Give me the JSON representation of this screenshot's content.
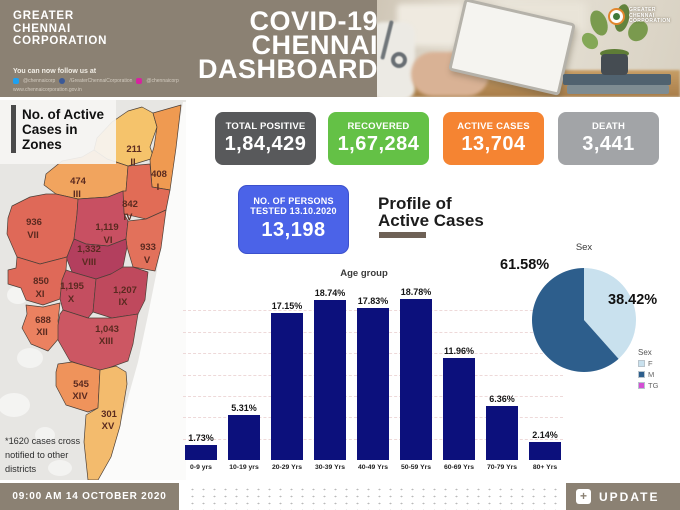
{
  "colors": {
    "header_bg": "#8b8173",
    "stat_total": "#58595b",
    "stat_recovered": "#64c146",
    "stat_active": "#f58432",
    "stat_death": "#a2a4a7",
    "tested_blue": "#4b63e8",
    "bar_navy": "#0c107c",
    "pie_female": "#c9e1ee",
    "pie_male": "#2d5e8c",
    "pie_tg": "#d44fd4",
    "twitter_icon": "#1da1f2",
    "facebook_icon": "#3b5998",
    "instagram_icon": "#d6249f",
    "profile_underline": "#6e6156"
  },
  "header": {
    "org_line1": "GREATER",
    "org_line2": "CHENNAI",
    "org_line3": "CORPORATION",
    "follow_text": "You can now follow us at",
    "twitter_handle": "@chennaicorp",
    "facebook_handle": "/GreaterChennaiCorporation",
    "instagram_handle": "@chennaicorp",
    "website": "www.chennaicorporation.gov.in",
    "title_line1": "COVID-19",
    "title_line2": "CHENNAI",
    "title_line3": "DASHBOARD"
  },
  "stats": [
    {
      "label": "TOTAL POSITIVE",
      "value": "1,84,429"
    },
    {
      "label": "RECOVERED",
      "value": "1,67,284"
    },
    {
      "label": "ACTIVE CASES",
      "value": "13,704"
    },
    {
      "label": "DEATH",
      "value": "3,441"
    }
  ],
  "tested": {
    "label_line1": "NO. OF PERSONS",
    "label_line2": "TESTED 13.10.2020",
    "value": "13,198"
  },
  "profile": {
    "title_line1": "Profile of",
    "title_line2": "Active Cases"
  },
  "map": {
    "title_line1": "No. of Active",
    "title_line2": "Cases in",
    "title_line3": "Zones",
    "footnote_line1": "*1620 cases cross",
    "footnote_line2": "notified to other",
    "footnote_line3": "districts",
    "zones": [
      {
        "zone": "II",
        "value": "211",
        "color": "#f5c36b"
      },
      {
        "zone": "I",
        "value": "408",
        "color": "#ef9a51"
      },
      {
        "zone": "III",
        "value": "474",
        "color": "#f1a45e"
      },
      {
        "zone": "IV",
        "value": "842",
        "color": "#e16c56"
      },
      {
        "zone": "VII",
        "value": "936",
        "color": "#df6958"
      },
      {
        "zone": "VI",
        "value": "1,119",
        "color": "#c85062"
      },
      {
        "zone": "V",
        "value": "933",
        "color": "#e2715b"
      },
      {
        "zone": "VIII",
        "value": "1,332",
        "color": "#b33f5e"
      },
      {
        "zone": "XI",
        "value": "850",
        "color": "#df6958"
      },
      {
        "zone": "X",
        "value": "1,195",
        "color": "#c44e60"
      },
      {
        "zone": "IX",
        "value": "1,207",
        "color": "#bf495d"
      },
      {
        "zone": "XII",
        "value": "688",
        "color": "#eb8160"
      },
      {
        "zone": "XIII",
        "value": "1,043",
        "color": "#cc5763"
      },
      {
        "zone": "XIV",
        "value": "545",
        "color": "#ef935b"
      },
      {
        "zone": "XV",
        "value": "301",
        "color": "#f3bb6d"
      }
    ]
  },
  "chart_data": [
    {
      "type": "bar",
      "title": "Age group",
      "categories": [
        "0-9 yrs",
        "10-19 yrs",
        "20-29 Yrs",
        "30-39 Yrs",
        "40-49 Yrs",
        "50-59 Yrs",
        "60-69 Yrs",
        "70-79 Yrs",
        "80+ Yrs"
      ],
      "values": [
        1.73,
        5.31,
        17.15,
        18.74,
        17.83,
        18.78,
        11.96,
        6.36,
        2.14
      ],
      "value_labels": [
        "1.73%",
        "5.31%",
        "17.15%",
        "18.74%",
        "17.83%",
        "18.78%",
        "11.96%",
        "6.36%",
        "2.14%"
      ],
      "unit": "%",
      "bar_color": "#0c107c",
      "ylim": [
        0,
        20
      ],
      "grid": true
    },
    {
      "type": "pie",
      "title": "Sex",
      "labels": [
        "F",
        "M",
        "TG"
      ],
      "values": [
        38.42,
        61.58,
        0
      ],
      "colors": [
        "#c9e1ee",
        "#2d5e8c",
        "#d44fd4"
      ],
      "slice_labels": [
        "38.42%",
        "61.58%"
      ],
      "legend_title": "Sex",
      "start_angle_deg": -90,
      "direction": "clockwise"
    }
  ],
  "footer": {
    "timestamp": "09:00 AM 14 OCTOBER 2020",
    "update_label": "UPDATE",
    "update_icon": "+"
  }
}
